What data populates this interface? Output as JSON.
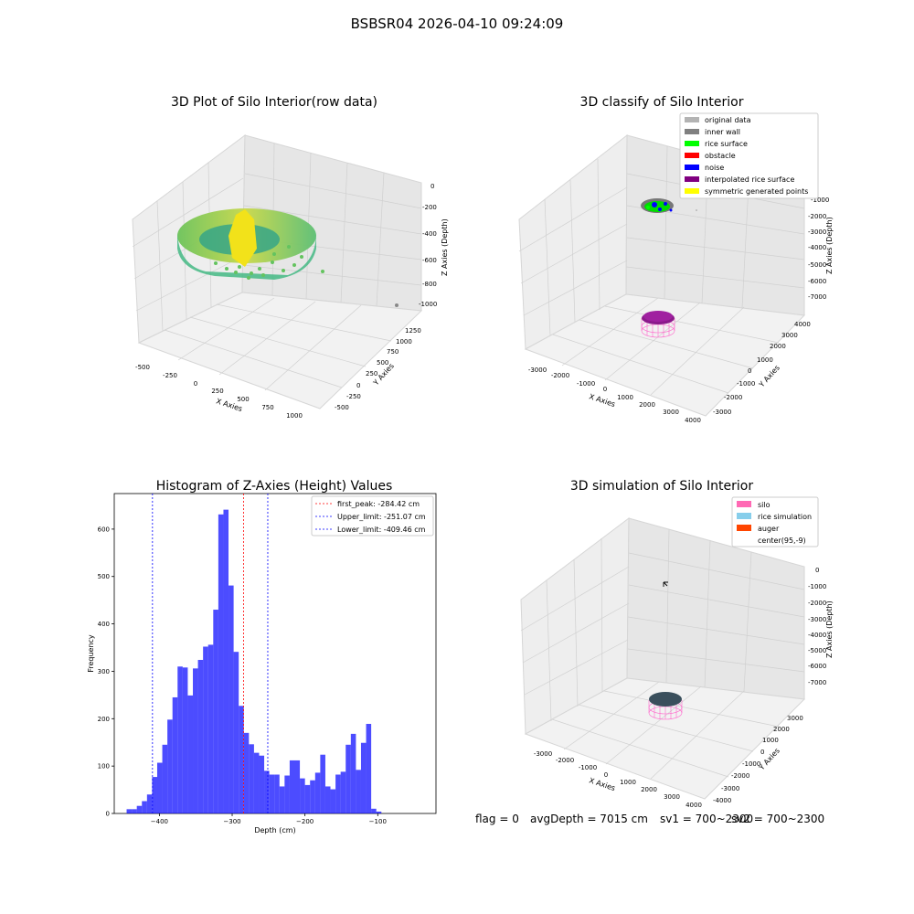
{
  "figure": {
    "title": "BSBSR04 2026-04-10 09:24:09",
    "status": {
      "flag": "flag = 0",
      "avg_depth": "avgDepth = 7015 cm",
      "sv1": "sv1 = 700~2300",
      "sv2": "sv2 = 700~2300"
    }
  },
  "panels": {
    "raw": {
      "title": "3D Plot of Silo Interior(row data)",
      "xlabel": "X Axies",
      "ylabel": "Y Axies",
      "zlabel": "Z Axies (Depth)",
      "x_ticks": [
        "-500",
        "-250",
        "0",
        "250",
        "500",
        "750",
        "1000"
      ],
      "y_ticks": [
        "-500",
        "-250",
        "0",
        "250",
        "500",
        "750",
        "1000",
        "1250"
      ],
      "z_ticks": [
        "0",
        "-200",
        "-400",
        "-600",
        "-800",
        "-1000"
      ]
    },
    "classify": {
      "title": "3D classify of Silo Interior",
      "xlabel": "X Axies",
      "ylabel": "Y Axies",
      "zlabel": "Z Axies (Depth)",
      "x_ticks": [
        "-3000",
        "-2000",
        "-1000",
        "0",
        "1000",
        "2000",
        "3000",
        "4000"
      ],
      "y_ticks": [
        "-3000",
        "-2000",
        "-1000",
        "0",
        "1000",
        "2000",
        "3000",
        "4000"
      ],
      "z_ticks": [
        "-1000",
        "-2000",
        "-3000",
        "-4000",
        "-5000",
        "-6000",
        "-7000"
      ],
      "legend": [
        {
          "label": "original data",
          "color": "#b3b3b3"
        },
        {
          "label": "inner wall",
          "color": "#808080"
        },
        {
          "label": "rice surface",
          "color": "#00ff00"
        },
        {
          "label": "obstacle",
          "color": "#ff0000"
        },
        {
          "label": "noise",
          "color": "#0000ff"
        },
        {
          "label": "interpolated rice surface",
          "color": "#800080"
        },
        {
          "label": "symmetric generated points",
          "color": "#ffff00"
        }
      ]
    },
    "simulation": {
      "title": "3D simulation of Silo Interior",
      "xlabel": "X Axies",
      "ylabel": "Y Axies",
      "zlabel": "Z Axies (Depth)",
      "x_ticks": [
        "-3000",
        "-2000",
        "-1000",
        "0",
        "1000",
        "2000",
        "3000",
        "4000"
      ],
      "y_ticks": [
        "-4000",
        "-3000",
        "-2000",
        "-1000",
        "0",
        "1000",
        "2000",
        "3000"
      ],
      "z_ticks": [
        "0",
        "-1000",
        "-2000",
        "-3000",
        "-4000",
        "-5000",
        "-6000",
        "-7000"
      ],
      "legend": [
        {
          "label": "silo",
          "color": "#ff69b4"
        },
        {
          "label": "rice simulation",
          "color": "#87ceeb"
        },
        {
          "label": "auger",
          "color": "#ff4500"
        },
        {
          "label": "center(95,-9)",
          "color": ""
        }
      ]
    }
  },
  "chart_data": {
    "type": "bar",
    "title": "Histogram of Z-Axies (Height) Values",
    "xlabel": "Depth (cm)",
    "ylabel": "Frequency",
    "xlim": [
      -462,
      -20
    ],
    "ylim": [
      0,
      675
    ],
    "x_ticks": [
      -400,
      -300,
      -200,
      -100
    ],
    "y_ticks": [
      0,
      100,
      200,
      300,
      400,
      500,
      600
    ],
    "bar_color": "#0000ff",
    "bin_width": 7.0,
    "bin_starts": [
      -445,
      -438,
      -431,
      -424,
      -417,
      -410,
      -403,
      -396,
      -389,
      -382,
      -375,
      -368,
      -361,
      -354,
      -347,
      -340,
      -333,
      -326,
      -319,
      -312,
      -305,
      -298,
      -291,
      -284,
      -277,
      -270,
      -263,
      -256,
      -249,
      -242,
      -235,
      -228,
      -221,
      -214,
      -207,
      -200,
      -193,
      -186,
      -179,
      -172,
      -165,
      -158,
      -151,
      -144,
      -137,
      -130,
      -123,
      -116,
      -109,
      -102,
      -95,
      -88,
      -81,
      -74,
      -67,
      -60,
      -53,
      -46,
      -39
    ],
    "values": [
      9,
      9,
      16,
      26,
      40,
      77,
      107,
      145,
      198,
      245,
      310,
      308,
      249,
      306,
      324,
      352,
      356,
      430,
      631,
      641,
      481,
      341,
      227,
      170,
      146,
      128,
      122,
      90,
      82,
      82,
      57,
      80,
      112,
      112,
      74,
      60,
      70,
      86,
      124,
      57,
      51,
      82,
      88,
      145,
      168,
      92,
      149,
      189,
      10,
      4,
      0,
      0,
      0,
      0,
      0,
      0,
      0,
      0,
      0
    ],
    "vlines": [
      {
        "label": "first_peak: -284.42 cm",
        "x": -284.42,
        "color": "#ff0000"
      },
      {
        "label": "Upper_limit: -251.07 cm",
        "x": -251.07,
        "color": "#0000ff"
      },
      {
        "label": "Lower_limit: -409.46 cm",
        "x": -409.46,
        "color": "#0000ff"
      }
    ],
    "legend_position": "top-right"
  }
}
